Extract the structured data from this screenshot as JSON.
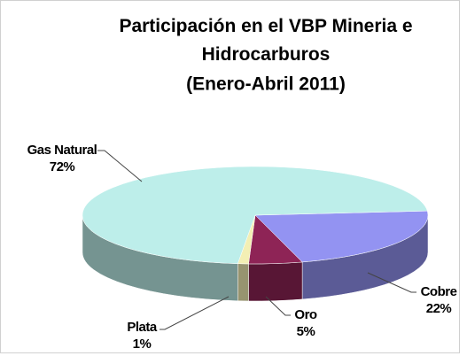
{
  "chart_data": {
    "type": "pie",
    "title": "Participación en el VBP Mineria e Hidrocarburos",
    "subtitle": "(Enero-Abril 2011)",
    "categories": [
      "Cobre",
      "Oro",
      "Plata",
      "Gas Natural"
    ],
    "values": [
      22,
      5,
      1,
      72
    ],
    "value_labels": [
      "22%",
      "5%",
      "1%",
      "72%"
    ],
    "colors": [
      "#9393f2",
      "#8e2456",
      "#f3efb4",
      "#bdeeea"
    ]
  }
}
